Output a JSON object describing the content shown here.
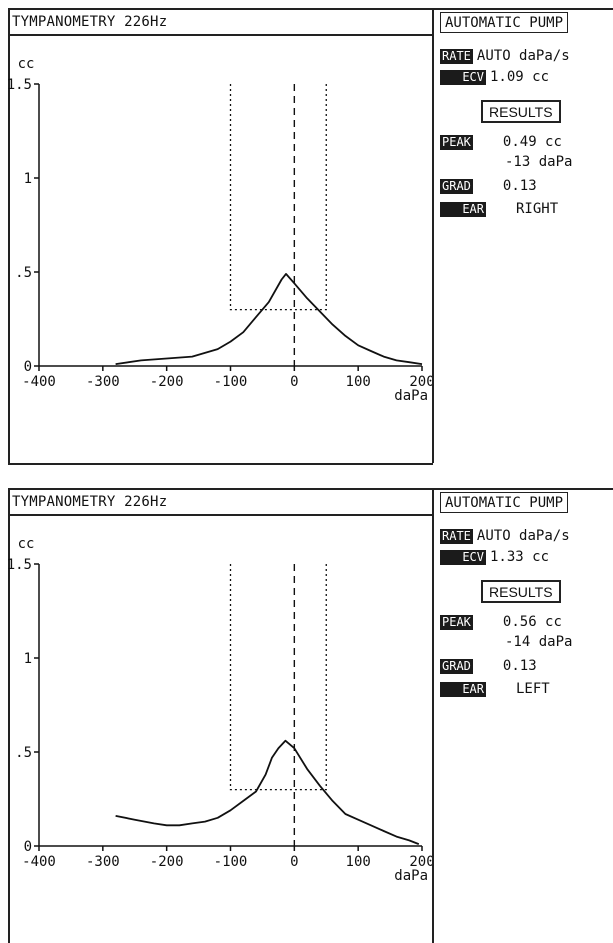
{
  "chart_data": [
    {
      "type": "line",
      "title": "TYMPANOMETRY 226Hz",
      "ylabel": "cc",
      "xlabel": "daPa",
      "xlim": [
        -400,
        200
      ],
      "ylim": [
        0,
        1.5
      ],
      "x_ticks": [
        -400,
        -300,
        -200,
        -100,
        0,
        100,
        200
      ],
      "x_tick_labels": [
        "-400",
        "-300",
        "-200",
        "-100",
        "0",
        "100",
        "200"
      ],
      "y_ticks": [
        0,
        0.5,
        1,
        1.5
      ],
      "y_tick_labels": [
        "0",
        ".5",
        "1",
        "1.5"
      ],
      "series": [
        {
          "x": [
            -280,
            -240,
            -200,
            -160,
            -120,
            -100,
            -80,
            -60,
            -40,
            -20,
            -13,
            0,
            20,
            40,
            60,
            80,
            100,
            120,
            140,
            160,
            180,
            200
          ],
          "y": [
            0.01,
            0.03,
            0.04,
            0.05,
            0.09,
            0.13,
            0.18,
            0.26,
            0.34,
            0.46,
            0.49,
            0.44,
            0.36,
            0.29,
            0.22,
            0.16,
            0.11,
            0.08,
            0.05,
            0.03,
            0.02,
            0.01
          ]
        }
      ],
      "box": {
        "x": [
          -100,
          50
        ],
        "y": [
          0.3,
          1.5
        ]
      },
      "pressure_marker": 0,
      "grid": false
    },
    {
      "type": "line",
      "title": "TYMPANOMETRY 226Hz",
      "ylabel": "cc",
      "xlabel": "daPa",
      "xlim": [
        -400,
        200
      ],
      "ylim": [
        0,
        1.5
      ],
      "x_ticks": [
        -400,
        -300,
        -200,
        -100,
        0,
        100,
        200
      ],
      "x_tick_labels": [
        "-400",
        "-300",
        "-200",
        "-100",
        "0",
        "100",
        "200"
      ],
      "y_ticks": [
        0,
        0.5,
        1,
        1.5
      ],
      "y_tick_labels": [
        "0",
        ".5",
        "1",
        "1.5"
      ],
      "series": [
        {
          "x": [
            -280,
            -250,
            -220,
            -200,
            -180,
            -160,
            -140,
            -120,
            -100,
            -80,
            -60,
            -45,
            -35,
            -25,
            -14,
            0,
            20,
            40,
            60,
            80,
            100,
            120,
            140,
            160,
            180,
            195
          ],
          "y": [
            0.16,
            0.14,
            0.12,
            0.11,
            0.11,
            0.12,
            0.13,
            0.15,
            0.19,
            0.24,
            0.29,
            0.38,
            0.47,
            0.52,
            0.56,
            0.52,
            0.41,
            0.32,
            0.24,
            0.17,
            0.14,
            0.11,
            0.08,
            0.05,
            0.03,
            0.01
          ]
        }
      ],
      "box": {
        "x": [
          -100,
          50
        ],
        "y": [
          0.3,
          1.5
        ]
      },
      "pressure_marker": 0,
      "grid": false
    }
  ],
  "panels": [
    {
      "title": "TYMPANOMETRY 226Hz",
      "mode": "AUTOMATIC PUMP",
      "rate_tag": "RATE",
      "rate_value": "AUTO daPa/s",
      "ecv_tag": "ECV",
      "ecv_value": "1.09 cc",
      "results_label": "RESULTS",
      "peak_tag": "PEAK",
      "peak_cc": "0.49 cc",
      "peak_dapa": "-13 daPa",
      "grad_tag": "GRAD",
      "grad_value": "0.13",
      "ear_tag": "EAR",
      "ear_value": "RIGHT"
    },
    {
      "title": "TYMPANOMETRY 226Hz",
      "mode": "AUTOMATIC PUMP",
      "rate_tag": "RATE",
      "rate_value": "AUTO daPa/s",
      "ecv_tag": "ECV",
      "ecv_value": "1.33 cc",
      "results_label": "RESULTS",
      "peak_tag": "PEAK",
      "peak_cc": "0.56 cc",
      "peak_dapa": "-14 daPa",
      "grad_tag": "GRAD",
      "grad_value": "0.13",
      "ear_tag": "EAR",
      "ear_value": "LEFT"
    }
  ]
}
